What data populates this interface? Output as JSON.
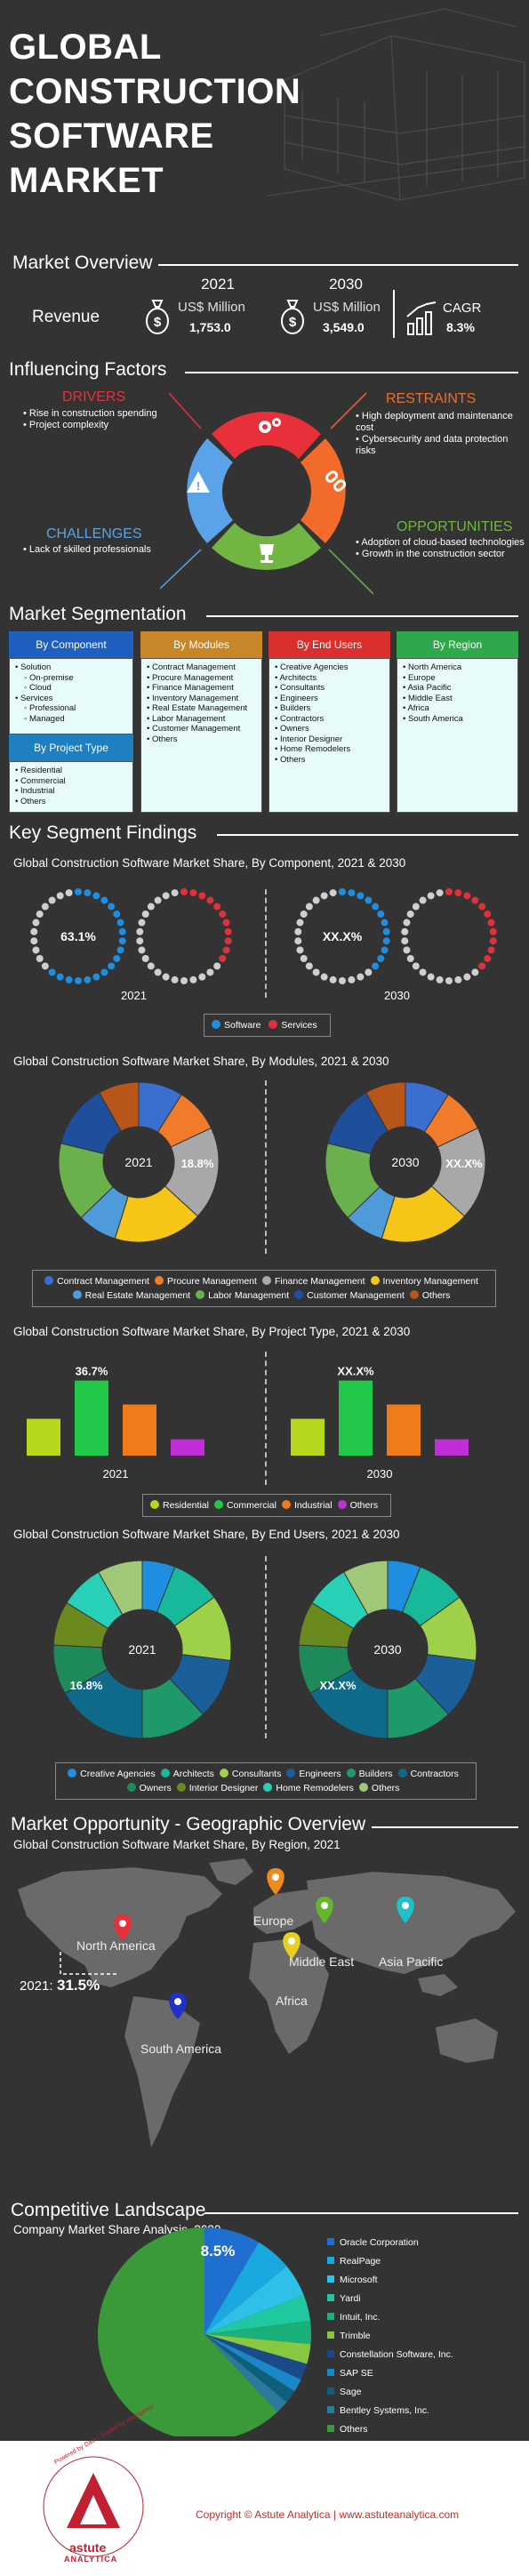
{
  "header": {
    "title_lines": [
      "GLOBAL",
      "CONSTRUCTION",
      "SOFTWARE",
      "MARKET"
    ]
  },
  "overview": {
    "section_title": "Market Overview",
    "revenue_label": "Revenue",
    "year_2021": "2021",
    "unit_2021": "US$ Million",
    "value_2021": "1,753.0",
    "year_2030": "2030",
    "unit_2030": "US$ Million",
    "value_2030": "3,549.0",
    "cagr_label": "CAGR",
    "cagr_value": "8.3%"
  },
  "factors": {
    "section_title": "Influencing Factors",
    "drivers_title": "DRIVERS",
    "drivers": [
      "Rise in construction spending",
      "Project complexity"
    ],
    "restraints_title": "RESTRAINTS",
    "restraints": [
      "High deployment and maintenance cost",
      "Cybersecurity and data protection risks"
    ],
    "challenges_title": "CHALLENGES",
    "challenges": [
      "Lack of skilled professionals"
    ],
    "opportunities_title": "OPPORTUNITIES",
    "opportunities": [
      "Adoption of cloud-based technologies",
      "Growth in the construction sector"
    ],
    "colors": {
      "drivers": "#e8303a",
      "restraints": "#f26b2a",
      "challenges": "#5aa3e8",
      "opportunities": "#71b543"
    }
  },
  "segmentation": {
    "section_title": "Market Segmentation",
    "component": {
      "title": "By Component",
      "items": [
        {
          "label": "Solution",
          "sub": [
            "On-premise",
            "Cloud"
          ]
        },
        {
          "label": "Services",
          "sub": [
            "Professional",
            "Managed"
          ]
        }
      ]
    },
    "project_type": {
      "title": "By Project Type",
      "items": [
        "Residential",
        "Commercial",
        "Industrial",
        "Others"
      ]
    },
    "modules": {
      "title": "By Modules",
      "items": [
        "Contract Management",
        "Procure Management",
        "Finance Management",
        "Inventory Management",
        "Real Estate Management",
        "Labor Management",
        "Customer Management",
        "Others"
      ]
    },
    "end_users": {
      "title": "By End Users",
      "items": [
        "Creative Agencies",
        "Architects",
        "Consultants",
        "Engineers",
        "Builders",
        "Contractors",
        "Owners",
        "Interior Designer",
        "Home Remodelers",
        "Others"
      ]
    },
    "region": {
      "title": "By Region",
      "items": [
        "North America",
        "Europe",
        "Asia Pacific",
        "Middle East",
        "Africa",
        "South America"
      ]
    },
    "colors": {
      "component": "#1f5fbf",
      "modules": "#c8862a",
      "end_users": "#d9302e",
      "region": "#2ea84a",
      "project_type": "#1f7fbf"
    }
  },
  "findings": {
    "section_title": "Key Segment Findings"
  },
  "chart_data": [
    {
      "type": "pie",
      "title": "Global Construction Software Market Share, By Component, 2021 & 2030",
      "categories": [
        "Software",
        "Services"
      ],
      "colors": [
        "#1e8ee0",
        "#e0303c"
      ],
      "series": [
        {
          "name": "2021",
          "values": [
            63.1,
            36.9
          ],
          "label": "63.1%"
        },
        {
          "name": "2030",
          "values": [
            null,
            null
          ],
          "label": "XX.X%"
        }
      ]
    },
    {
      "type": "pie",
      "title": "Global Construction Software Market Share, By Modules, 2021 & 2030",
      "categories": [
        "Contract Management",
        "Procure Management",
        "Finance Management",
        "Inventory Management",
        "Real Estate Management",
        "Labor Management",
        "Customer Management",
        "Others"
      ],
      "colors": [
        "#3a6fd0",
        "#f07b2a",
        "#a8a8a8",
        "#f5c518",
        "#4f9ad8",
        "#6ab04c",
        "#1f4f9a",
        "#b8561a"
      ],
      "series": [
        {
          "name": "2021",
          "values": [
            9,
            9,
            18.8,
            18,
            8,
            16,
            13,
            8.2
          ],
          "label": "18.8%"
        },
        {
          "name": "2030",
          "values": [
            null,
            null,
            null,
            null,
            null,
            null,
            null,
            null
          ],
          "label": "XX.X%"
        }
      ]
    },
    {
      "type": "bar",
      "title": "Global Construction Software Market Share, By Project Type, 2021 & 2030",
      "categories": [
        "Residential",
        "Commercial",
        "Industrial",
        "Others"
      ],
      "colors": [
        "#b5d81c",
        "#22c84a",
        "#f07b1a",
        "#c02ed8"
      ],
      "series": [
        {
          "name": "2021",
          "values": [
            18,
            36.7,
            25,
            8
          ],
          "label": "36.7%"
        },
        {
          "name": "2030",
          "values": [
            null,
            null,
            null,
            null
          ],
          "label": "XX.X%"
        }
      ]
    },
    {
      "type": "pie",
      "title": "Global Construction Software Market Share, By End Users, 2021 & 2030",
      "categories": [
        "Creative Agencies",
        "Architects",
        "Consultants",
        "Engineers",
        "Builders",
        "Contractors",
        "Owners",
        "Interior Designer",
        "Home Remodelers",
        "Others"
      ],
      "colors": [
        "#1e8ee0",
        "#18b89a",
        "#9ed04a",
        "#1a5f9a",
        "#1e9a6a",
        "#0f6a8a",
        "#1e8a5a",
        "#6a8a1e",
        "#28d0b8",
        "#a0c878"
      ],
      "series": [
        {
          "name": "2021",
          "values": [
            6,
            9,
            12,
            11,
            12,
            16.8,
            9,
            8,
            8,
            8.2
          ],
          "label": "16.8%"
        },
        {
          "name": "2030",
          "values": [
            null,
            null,
            null,
            null,
            null,
            null,
            null,
            null,
            null,
            null
          ],
          "label": "XX.X%"
        }
      ]
    },
    {
      "type": "pie",
      "title": "Company Market Share Analysis, 2020",
      "categories": [
        "Oracle Corporation",
        "RealPage",
        "Microsoft",
        "Yardi",
        "Intuit, Inc.",
        "Trimble",
        "Constellation Software, Inc.",
        "SAP SE",
        "Sage",
        "Bentley Systems, Inc.",
        "Others"
      ],
      "colors": [
        "#1e6fd0",
        "#1aa8e0",
        "#2ec0e8",
        "#20c8a0",
        "#1ab07a",
        "#88c840",
        "#1a4a8a",
        "#1a88c8",
        "#0f5f7a",
        "#2a7aa0",
        "#3a9a3a"
      ],
      "values": [
        8.5,
        5.5,
        5,
        4,
        3.5,
        3,
        2.5,
        2,
        2,
        2,
        62
      ],
      "label": "8.5%"
    }
  ],
  "labels": {
    "component_chart_title": "Global Construction Software Market Share, By Component, 2021 & 2030",
    "modules_chart_title": "Global Construction Software Market Share, By Modules, 2021 & 2030",
    "project_chart_title": "Global Construction Software Market Share, By Project Type, 2021 & 2030",
    "users_chart_title": "Global Construction Software Market Share, By End Users, 2021 & 2030",
    "year_2021": "2021",
    "year_2030": "2030",
    "donut_2021_label": "2021",
    "donut_2030_label": "2030"
  },
  "geo": {
    "section_title": "Market Opportunity - Geographic Overview",
    "chart_title": "Global Construction Software Market Share, By Region, 2021",
    "regions": [
      {
        "name": "North America",
        "color": "#e8303a"
      },
      {
        "name": "Europe",
        "color": "#f08a1a"
      },
      {
        "name": "Middle East",
        "color": "#62b82a"
      },
      {
        "name": "Asia Pacific",
        "color": "#20c0c8"
      },
      {
        "name": "Africa",
        "color": "#e8d020"
      },
      {
        "name": "South America",
        "color": "#2030c8"
      }
    ],
    "callout_year": "2021:",
    "callout_value": "31.5%"
  },
  "competitive": {
    "section_title": "Competitive Landscape",
    "chart_title": "Company Market Share Analysis, 2020"
  },
  "footer": {
    "copyright": "Copyright © Astute Analytica",
    "separator": "|",
    "website": "www.astuteanalytica.com",
    "logo_name": "astute",
    "logo_name2": "ANALYTICA",
    "logo_arc": "Powered by Data | Guided by Intelligence"
  }
}
